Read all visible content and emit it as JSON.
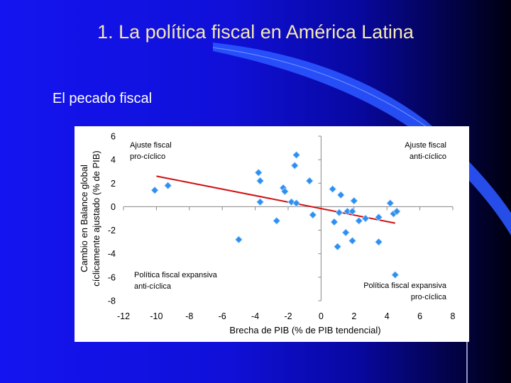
{
  "slide": {
    "title": "1. La política fiscal en América Latina",
    "subtitle": "El pecado fiscal"
  },
  "colors": {
    "background": "#1212e6",
    "title": "#f6e8b4",
    "points": "#2e8ff0",
    "trend": "#d01010"
  },
  "chart_data": {
    "type": "scatter",
    "title": "",
    "xlabel": "Brecha de PIB (% de PIB tendencial)",
    "ylabel_line1": "Cambio en Balance global",
    "ylabel_line2": "cíclicamente ajustado (% de PIB)",
    "xlim": [
      -12,
      8
    ],
    "ylim": [
      -8,
      6
    ],
    "xticks": [
      -12,
      -10,
      -8,
      -6,
      -4,
      -2,
      0,
      2,
      4,
      6,
      8
    ],
    "yticks": [
      6,
      4,
      2,
      0,
      -2,
      -4,
      -6,
      -8
    ],
    "grid": false,
    "quadrant_labels": {
      "top_left": [
        "Ajuste fiscal",
        "pro-cíclico"
      ],
      "top_right": [
        "Ajuste fiscal",
        "anti-cíclico"
      ],
      "bottom_left": [
        "Política fiscal expansiva",
        "anti-cíclica"
      ],
      "bottom_right": [
        "Política fiscal expansiva",
        "pro-cíclica"
      ]
    },
    "points": [
      {
        "x": -10.1,
        "y": 1.4
      },
      {
        "x": -9.3,
        "y": 1.8
      },
      {
        "x": -5.0,
        "y": -2.8
      },
      {
        "x": -3.8,
        "y": 2.9
      },
      {
        "x": -3.7,
        "y": 2.2
      },
      {
        "x": -3.7,
        "y": 0.4
      },
      {
        "x": -2.7,
        "y": -1.2
      },
      {
        "x": -2.3,
        "y": 1.6
      },
      {
        "x": -2.2,
        "y": 1.3
      },
      {
        "x": -1.8,
        "y": 0.4
      },
      {
        "x": -1.5,
        "y": 0.3
      },
      {
        "x": -1.6,
        "y": 3.5
      },
      {
        "x": -1.5,
        "y": 4.4
      },
      {
        "x": -0.7,
        "y": 2.2
      },
      {
        "x": -0.5,
        "y": -0.7
      },
      {
        "x": 0.7,
        "y": 1.5
      },
      {
        "x": 0.8,
        "y": -1.3
      },
      {
        "x": 1.0,
        "y": -3.4
      },
      {
        "x": 1.1,
        "y": -0.5
      },
      {
        "x": 1.2,
        "y": 1.0
      },
      {
        "x": 1.5,
        "y": -2.2
      },
      {
        "x": 1.6,
        "y": -0.4
      },
      {
        "x": 1.9,
        "y": -0.4
      },
      {
        "x": 1.9,
        "y": -2.9
      },
      {
        "x": 2.0,
        "y": 0.5
      },
      {
        "x": 2.3,
        "y": -1.2
      },
      {
        "x": 2.7,
        "y": -1.0
      },
      {
        "x": 3.5,
        "y": -3.0
      },
      {
        "x": 3.5,
        "y": -0.9
      },
      {
        "x": 4.2,
        "y": 0.3
      },
      {
        "x": 4.4,
        "y": -0.6
      },
      {
        "x": 4.5,
        "y": -5.8
      },
      {
        "x": 4.6,
        "y": -0.4
      }
    ],
    "trendline": {
      "x": [
        -10,
        4.5
      ],
      "y": [
        2.6,
        -1.4
      ]
    }
  }
}
